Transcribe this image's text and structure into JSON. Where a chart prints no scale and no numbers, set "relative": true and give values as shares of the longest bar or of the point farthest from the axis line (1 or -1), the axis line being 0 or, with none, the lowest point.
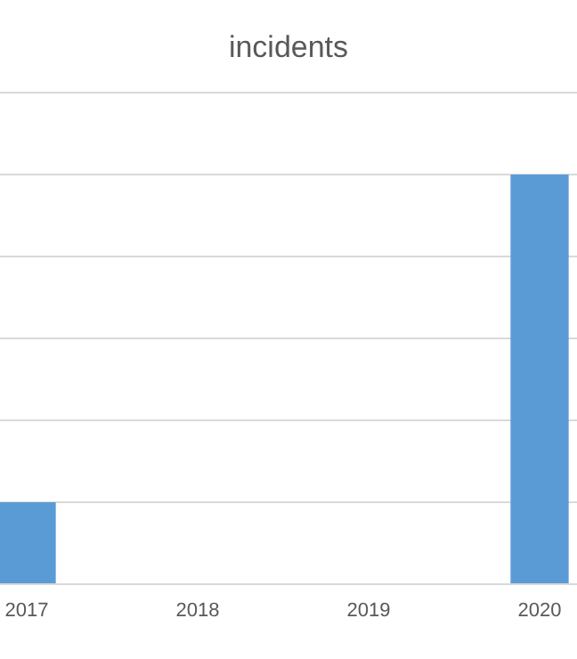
{
  "chart_data": {
    "type": "bar",
    "title": "incidents",
    "categories": [
      "2017",
      "2018",
      "2019",
      "2020"
    ],
    "values": [
      0.2,
      0,
      0,
      1
    ],
    "color": "#5b9bd5",
    "relative": true,
    "grid": "y"
  }
}
